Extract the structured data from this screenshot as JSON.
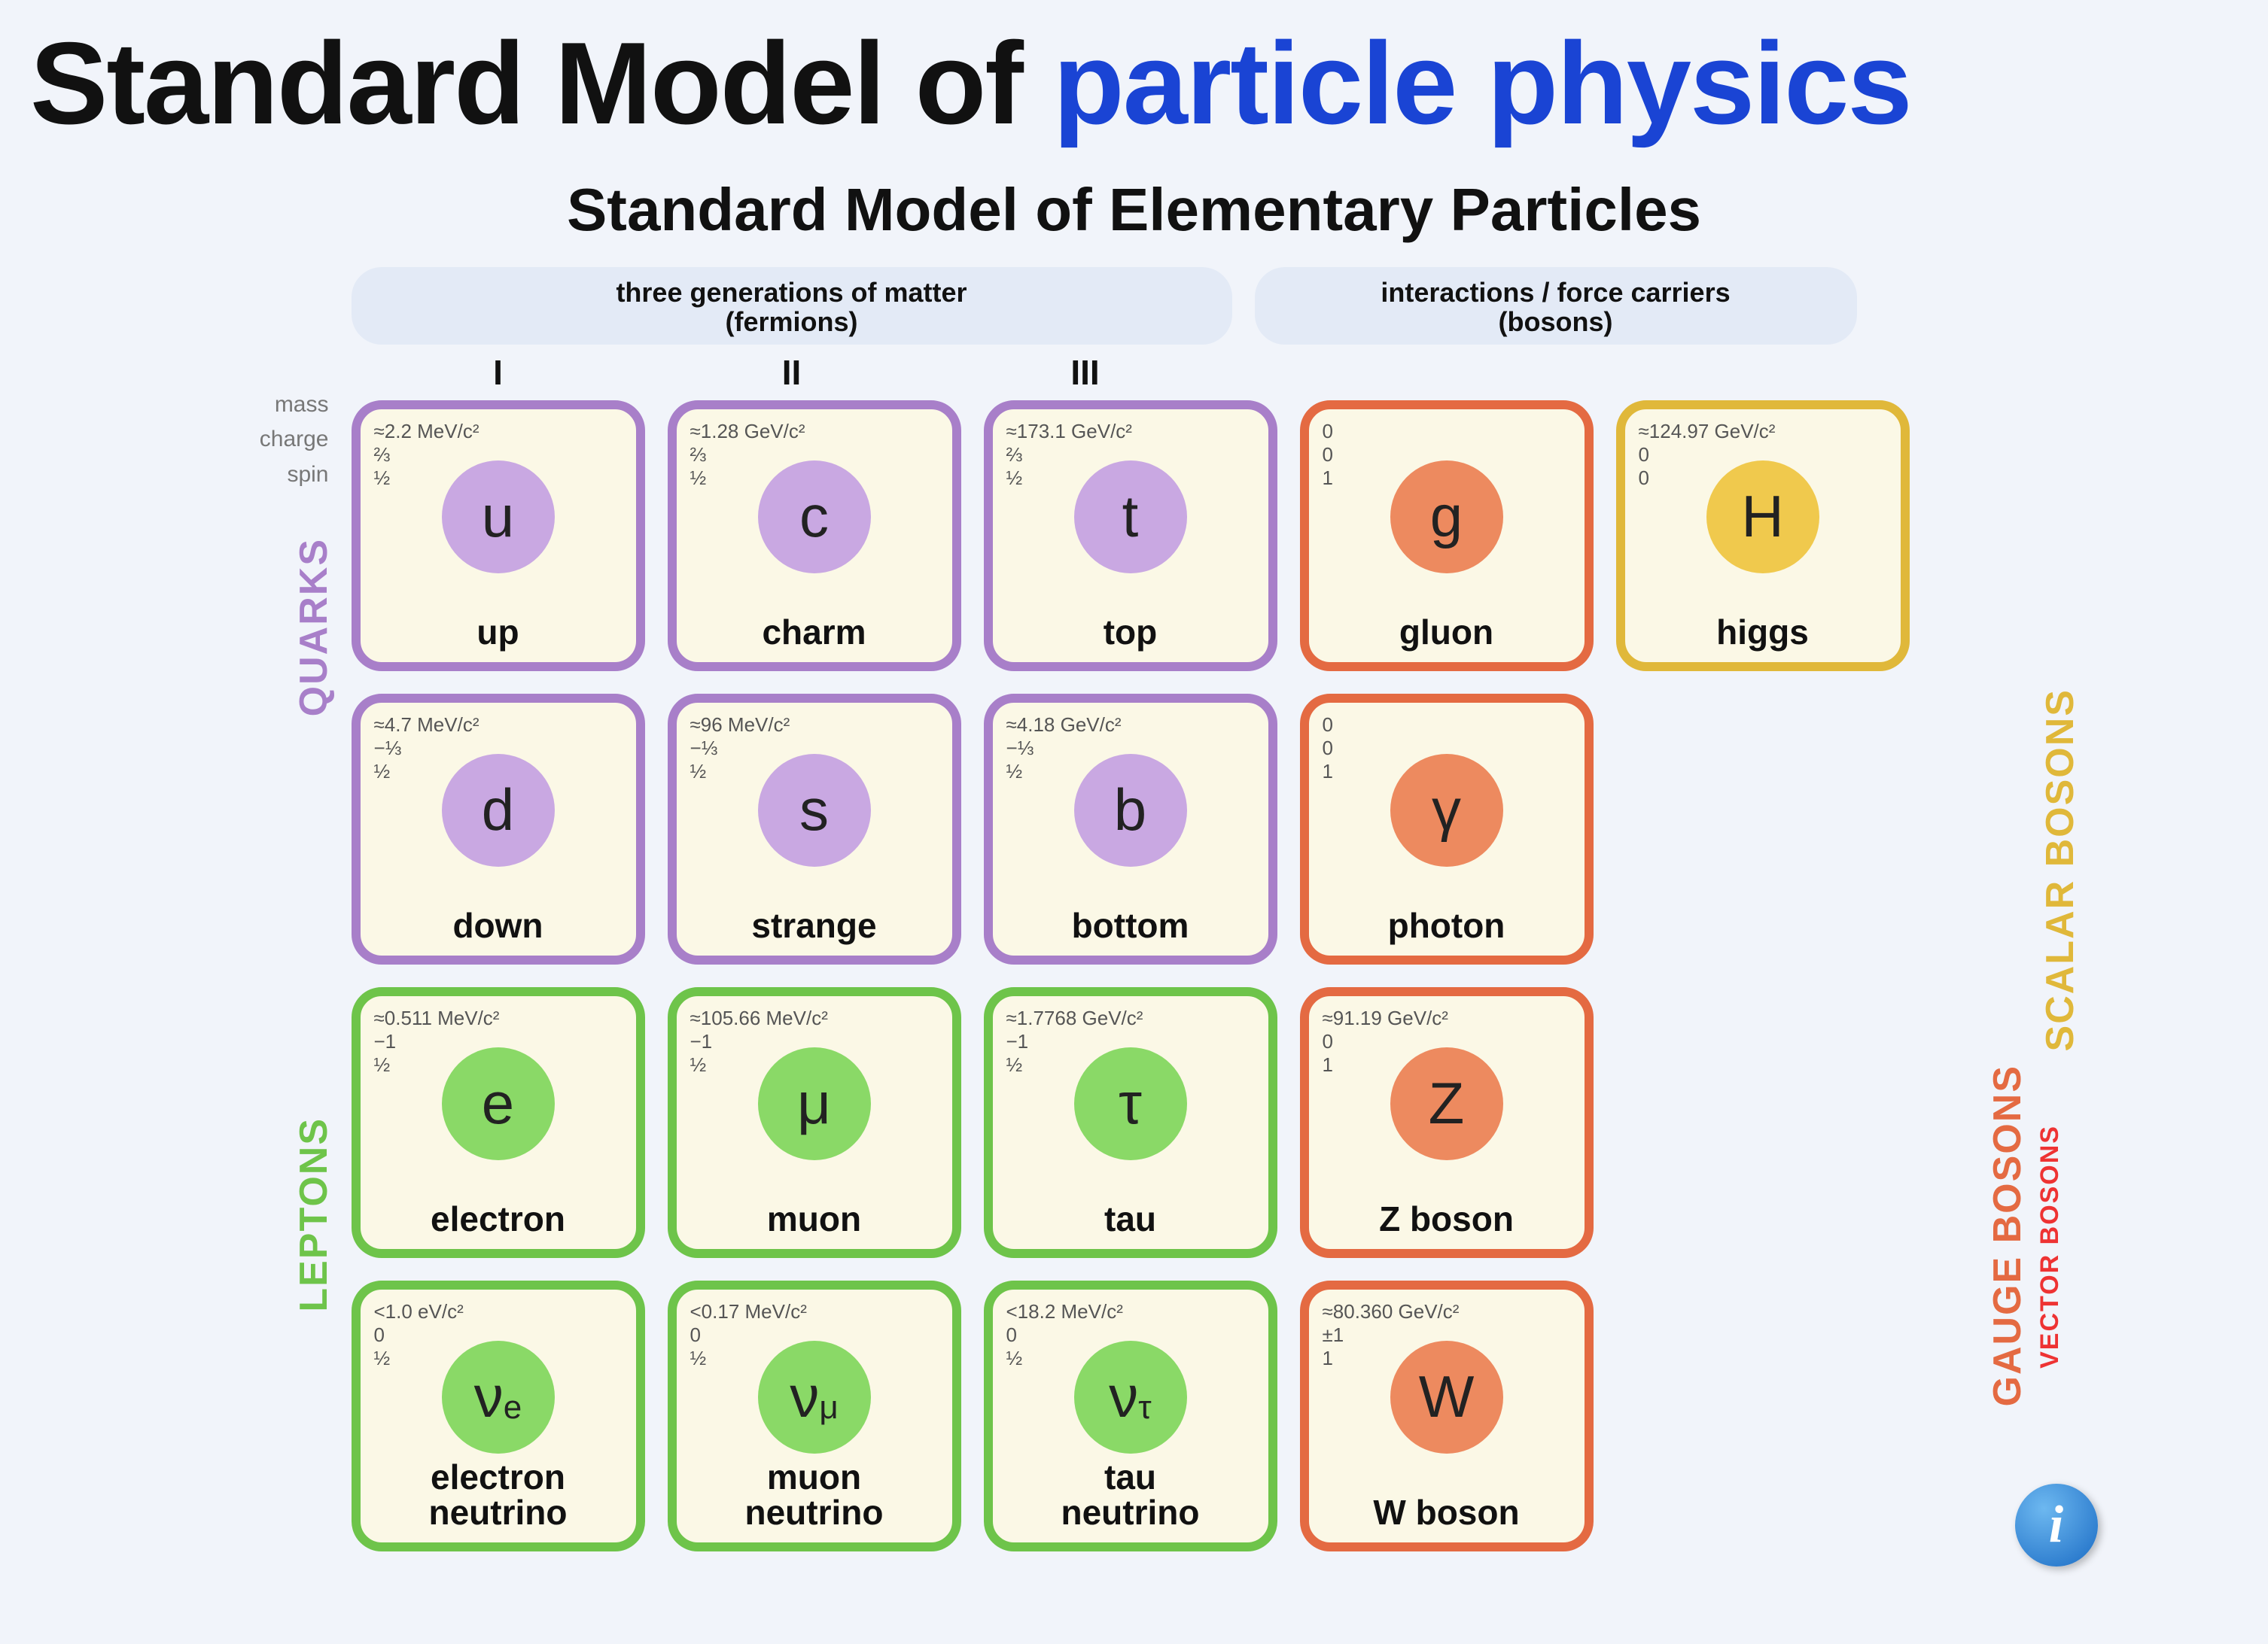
{
  "title": {
    "a": "Standard Model of ",
    "b": "particle physics"
  },
  "subtitle": "Standard Model of Elementary Particles",
  "headers": {
    "fermions": {
      "line1": "three generations of matter",
      "line2": "(fermions)"
    },
    "bosons": {
      "line1": "interactions / force carriers",
      "line2": "(bosons)"
    },
    "gens": {
      "g1": "I",
      "g2": "II",
      "g3": "III"
    }
  },
  "legend": {
    "mass": "mass",
    "charge": "charge",
    "spin": "spin"
  },
  "groupLabels": {
    "quarks": "QUARKS",
    "leptons": "LEPTONS",
    "gauge": "GAUGE BOSONS",
    "vector": "VECTOR BOSONS",
    "scalar": "SCALAR BOSONS"
  },
  "colors": {
    "quark_border": "#a87fc9",
    "quark_fill": "#c9a8e2",
    "lepton_border": "#6ec44a",
    "lepton_fill": "#8ad967",
    "gauge_border": "#e46a42",
    "gauge_fill": "#ed8a5f",
    "scalar_border": "#e0b83a",
    "scalar_fill": "#f0c94d",
    "background": "#f1f4fa",
    "cell_bg": "#fbf8e6",
    "pill_bg": "#e3eaf6",
    "title_blue": "#1a44d4"
  },
  "particles": {
    "u": {
      "group": "quark",
      "row": 0,
      "col": 0,
      "symbol": "u",
      "sub": "",
      "name": "up",
      "mass": "≈2.2 MeV/c²",
      "charge": "⅔",
      "spin": "½"
    },
    "c": {
      "group": "quark",
      "row": 0,
      "col": 1,
      "symbol": "c",
      "sub": "",
      "name": "charm",
      "mass": "≈1.28 GeV/c²",
      "charge": "⅔",
      "spin": "½"
    },
    "t": {
      "group": "quark",
      "row": 0,
      "col": 2,
      "symbol": "t",
      "sub": "",
      "name": "top",
      "mass": "≈173.1 GeV/c²",
      "charge": "⅔",
      "spin": "½"
    },
    "g": {
      "group": "gauge",
      "row": 0,
      "col": 3,
      "symbol": "g",
      "sub": "",
      "name": "gluon",
      "mass": "0",
      "charge": "0",
      "spin": "1"
    },
    "H": {
      "group": "scalar",
      "row": 0,
      "col": 4,
      "symbol": "H",
      "sub": "",
      "name": "higgs",
      "mass": "≈124.97 GeV/c²",
      "charge": "0",
      "spin": "0"
    },
    "d": {
      "group": "quark",
      "row": 1,
      "col": 0,
      "symbol": "d",
      "sub": "",
      "name": "down",
      "mass": "≈4.7 MeV/c²",
      "charge": "−⅓",
      "spin": "½"
    },
    "s": {
      "group": "quark",
      "row": 1,
      "col": 1,
      "symbol": "s",
      "sub": "",
      "name": "strange",
      "mass": "≈96 MeV/c²",
      "charge": "−⅓",
      "spin": "½"
    },
    "b": {
      "group": "quark",
      "row": 1,
      "col": 2,
      "symbol": "b",
      "sub": "",
      "name": "bottom",
      "mass": "≈4.18 GeV/c²",
      "charge": "−⅓",
      "spin": "½"
    },
    "ph": {
      "group": "gauge",
      "row": 1,
      "col": 3,
      "symbol": "γ",
      "sub": "",
      "name": "photon",
      "mass": "0",
      "charge": "0",
      "spin": "1"
    },
    "e": {
      "group": "lepton",
      "row": 2,
      "col": 0,
      "symbol": "e",
      "sub": "",
      "name": "electron",
      "mass": "≈0.511 MeV/c²",
      "charge": "−1",
      "spin": "½"
    },
    "mu": {
      "group": "lepton",
      "row": 2,
      "col": 1,
      "symbol": "μ",
      "sub": "",
      "name": "muon",
      "mass": "≈105.66 MeV/c²",
      "charge": "−1",
      "spin": "½"
    },
    "tau": {
      "group": "lepton",
      "row": 2,
      "col": 2,
      "symbol": "τ",
      "sub": "",
      "name": "tau",
      "mass": "≈1.7768 GeV/c²",
      "charge": "−1",
      "spin": "½"
    },
    "Z": {
      "group": "gauge",
      "row": 2,
      "col": 3,
      "symbol": "Z",
      "sub": "",
      "name": "Z boson",
      "mass": "≈91.19 GeV/c²",
      "charge": "0",
      "spin": "1"
    },
    "ve": {
      "group": "lepton",
      "row": 3,
      "col": 0,
      "symbol": "ν",
      "sub": "e",
      "name": "electron\nneutrino",
      "mass": "<1.0 eV/c²",
      "charge": "0",
      "spin": "½"
    },
    "vmu": {
      "group": "lepton",
      "row": 3,
      "col": 1,
      "symbol": "ν",
      "sub": "μ",
      "name": "muon\nneutrino",
      "mass": "<0.17 MeV/c²",
      "charge": "0",
      "spin": "½"
    },
    "vtau": {
      "group": "lepton",
      "row": 3,
      "col": 2,
      "symbol": "ν",
      "sub": "τ",
      "name": "tau\nneutrino",
      "mass": "<18.2 MeV/c²",
      "charge": "0",
      "spin": "½"
    },
    "W": {
      "group": "gauge",
      "row": 3,
      "col": 3,
      "symbol": "W",
      "sub": "",
      "name": "W boson",
      "mass": "≈80.360 GeV/c²",
      "charge": "±1",
      "spin": "1"
    }
  },
  "info_glyph": "i"
}
